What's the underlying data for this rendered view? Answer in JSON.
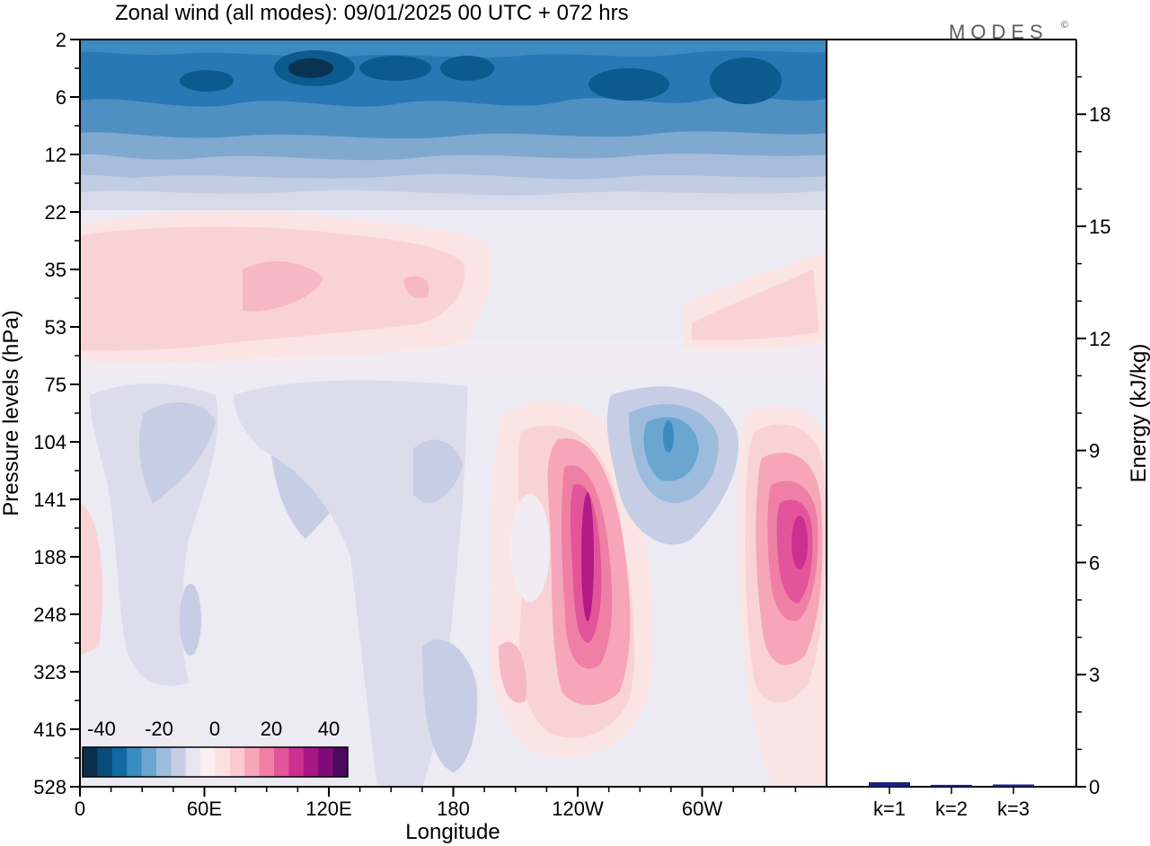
{
  "title": "Zonal wind (all modes):  09/01/2025  00 UTC  + 072 hrs",
  "logo": "MODES",
  "logo_mark": "©",
  "chart_data": [
    {
      "type": "heatmap",
      "xlabel": "Longitude",
      "ylabel": "Pressure levels (hPa)",
      "x_ticks": [
        "0",
        "60E",
        "120E",
        "180",
        "120W",
        "60W"
      ],
      "y_ticks": [
        "2",
        "6",
        "12",
        "22",
        "35",
        "53",
        "75",
        "104",
        "141",
        "188",
        "248",
        "323",
        "416",
        "528"
      ],
      "colorbar": {
        "labels": [
          "-40",
          "-20",
          "0",
          "20",
          "40"
        ],
        "range": [
          -40,
          40
        ],
        "colors": [
          "#0a2f4f",
          "#0b4c7a",
          "#0f6aa3",
          "#3a8bc0",
          "#6aa6cf",
          "#9dbcdc",
          "#c6cde4",
          "#e6e6f2",
          "#fbf0f0",
          "#fde0e0",
          "#fbc9cf",
          "#f6a6b8",
          "#ef7fa4",
          "#e2559a",
          "#cc2f8f",
          "#a81783",
          "#7d0c79",
          "#4d0a5e"
        ]
      },
      "features": [
        {
          "name": "stratospheric easterly jet",
          "lon_range": [
            0,
            360
          ],
          "level_range": [
            2,
            12
          ],
          "peak": -40
        },
        {
          "name": "westerly band",
          "lon_range": [
            0,
            205
          ],
          "level_range": [
            22,
            75
          ],
          "peak": 12
        },
        {
          "name": "westerly core east Pacific",
          "lon_center": 236,
          "level_center": 188,
          "peak": 35
        },
        {
          "name": "westerly core Atlantic",
          "lon_center": 342,
          "level_center": 188,
          "peak": 25
        },
        {
          "name": "easterly core",
          "lon_center": 284,
          "level_center": 104,
          "peak": -20
        }
      ]
    },
    {
      "type": "bar",
      "categories": [
        "k=1",
        "k=2",
        "k=3"
      ],
      "values": [
        0.12,
        0.05,
        0.06
      ],
      "ylabel": "Energy (kJ/kg)",
      "y_ticks": [
        "0",
        "3",
        "6",
        "9",
        "12",
        "15",
        "18"
      ],
      "ylim": [
        0,
        20
      ],
      "bar_color": "#1a237e"
    }
  ]
}
